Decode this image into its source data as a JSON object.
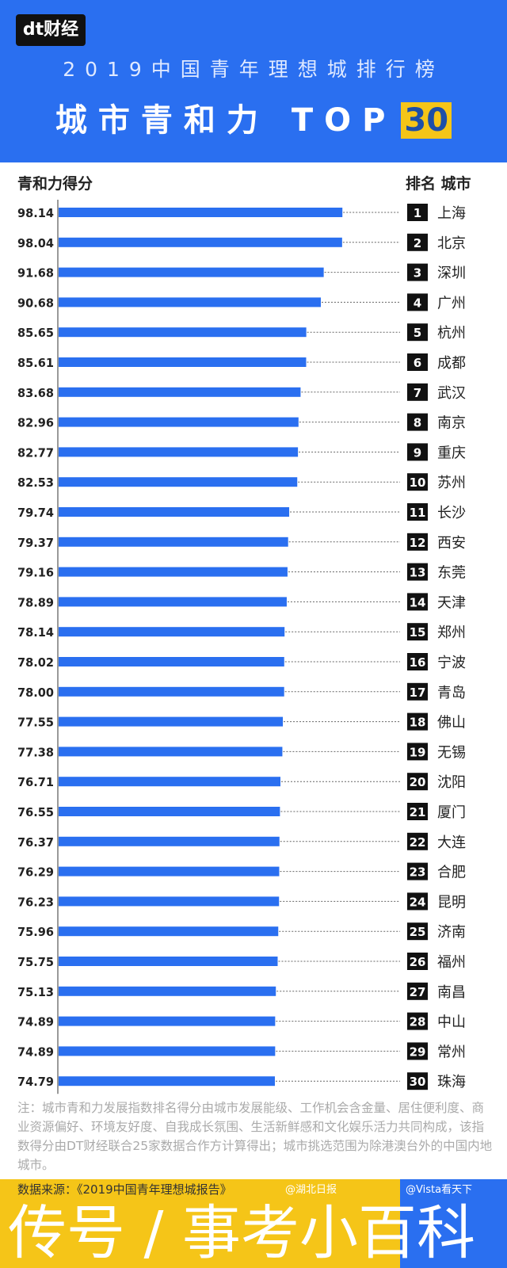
{
  "header": {
    "logo": "dt财经",
    "title_line1": "2019中国青年理想城排行榜",
    "title_line2": "城市青和力 TOP",
    "title_highlight": "30"
  },
  "colors": {
    "header_blue": "#2a6ff0",
    "bar": "#2a6ff0",
    "highlight_yellow": "#f5c518",
    "rank_box": "#111111"
  },
  "chart_data": {
    "type": "bar",
    "orientation": "horizontal",
    "left_header": "青和力得分",
    "right_header": "排名 城市",
    "xlim": [
      0,
      100
    ],
    "categories": [
      "上海",
      "北京",
      "深圳",
      "广州",
      "杭州",
      "成都",
      "武汉",
      "南京",
      "重庆",
      "苏州",
      "长沙",
      "西安",
      "东莞",
      "天津",
      "郑州",
      "宁波",
      "青岛",
      "佛山",
      "无锡",
      "沈阳",
      "厦门",
      "大连",
      "合肥",
      "昆明",
      "济南",
      "福州",
      "南昌",
      "中山",
      "常州",
      "珠海"
    ],
    "ranks": [
      "1",
      "2",
      "3",
      "4",
      "5",
      "6",
      "7",
      "8",
      "9",
      "10",
      "11",
      "12",
      "13",
      "14",
      "15",
      "16",
      "17",
      "18",
      "19",
      "20",
      "21",
      "22",
      "23",
      "24",
      "25",
      "26",
      "27",
      "28",
      "29",
      "30"
    ],
    "values": [
      98.14,
      98.04,
      91.68,
      90.68,
      85.65,
      85.61,
      83.68,
      82.96,
      82.77,
      82.53,
      79.74,
      79.37,
      79.16,
      78.89,
      78.14,
      78.02,
      78.0,
      77.55,
      77.38,
      76.71,
      76.55,
      76.37,
      76.29,
      76.23,
      75.96,
      75.75,
      75.13,
      74.89,
      74.89,
      74.79
    ],
    "labels": [
      "98.14",
      "98.04",
      "91.68",
      "90.68",
      "85.65",
      "85.61",
      "83.68",
      "82.96",
      "82.77",
      "82.53",
      "79.74",
      "79.37",
      "79.16",
      "78.89",
      "78.14",
      "78.02",
      "78.00",
      "77.55",
      "77.38",
      "76.71",
      "76.55",
      "76.37",
      "76.29",
      "76.23",
      "75.96",
      "75.75",
      "75.13",
      "74.89",
      "74.89",
      "74.79"
    ]
  },
  "note": "注：城市青和力发展指数排名得分由城市发展能级、工作机会含金量、居住便利度、商业资源偏好、环境友好度、自我成长氛围、生活新鲜感和文化娱乐活力共同构成，该指数得分由DT财经联合25家数据合作方计算得出；城市挑选范围为除港澳台外的中国内地城市。",
  "footer": {
    "source": "数据来源：《2019中国青年理想城报告》",
    "weibo1": "@湖北日报",
    "weibo2": "@Vista看天下",
    "watermark": "传号 / 事考小百科"
  }
}
